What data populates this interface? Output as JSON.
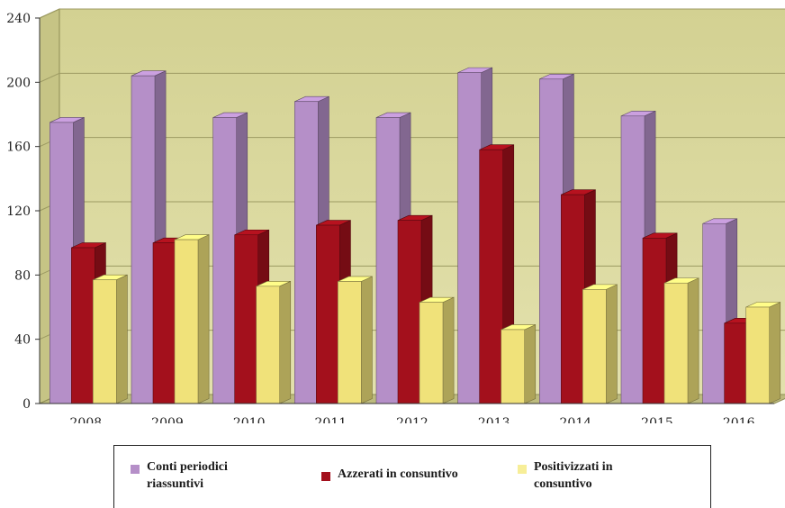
{
  "chart_data": {
    "type": "bar",
    "categories": [
      "2008",
      "2009",
      "2010",
      "2011",
      "2012",
      "2013",
      "2014",
      "2015",
      "2016"
    ],
    "series": [
      {
        "name": "Conti periodici riassuntivi",
        "color": "#b58fc8",
        "values": [
          175,
          204,
          178,
          188,
          178,
          206,
          202,
          179,
          112
        ]
      },
      {
        "name": "Azzerati in consuntivo",
        "color": "#a3101c",
        "values": [
          97,
          100,
          105,
          111,
          114,
          158,
          130,
          103,
          50
        ]
      },
      {
        "name": "Positivizzati in consuntivo",
        "color": "#f0e27a",
        "values": [
          77,
          102,
          73,
          76,
          63,
          46,
          71,
          75,
          60
        ]
      }
    ],
    "yticks": [
      "0",
      "40",
      "80",
      "120",
      "160",
      "200",
      "240"
    ],
    "ylim": [
      0,
      240
    ],
    "grid": true,
    "legend_position": "bottom",
    "wall_color": "#d8d69a"
  },
  "legend": {
    "item1": [
      "Conti periodici",
      "riassuntivi"
    ],
    "item2": [
      "Azzerati in consuntivo"
    ],
    "item3": [
      "Positivizzati in",
      "consuntivo"
    ]
  }
}
